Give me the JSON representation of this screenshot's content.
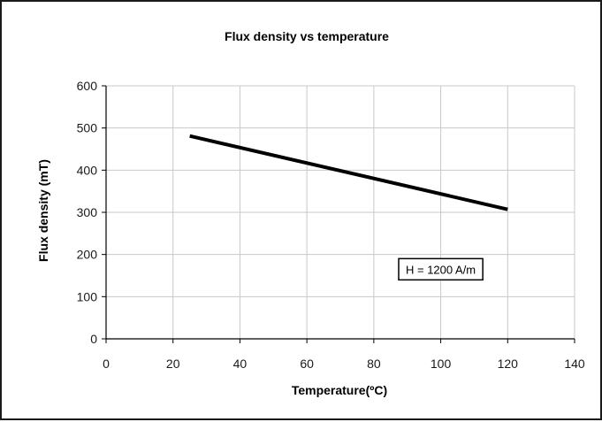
{
  "chart_data": {
    "type": "line",
    "title": "Flux density vs temperature",
    "xlabel": "Temperature(ºC)",
    "ylabel": "Flux density (mT)",
    "xlim": [
      0,
      140
    ],
    "ylim": [
      0,
      600
    ],
    "xticks": [
      0,
      20,
      40,
      60,
      80,
      100,
      120,
      140
    ],
    "yticks": [
      0,
      100,
      200,
      300,
      400,
      500,
      600
    ],
    "grid": true,
    "series": [
      {
        "x": [
          25,
          120
        ],
        "y": [
          481,
          307
        ],
        "color": "#000000"
      }
    ],
    "annotations": [
      {
        "text": "H = 1200 A/m",
        "x": 100,
        "y": 165
      }
    ]
  },
  "colors": {
    "grid": "#c8c8c8",
    "axis": "#000000",
    "line": "#000000"
  }
}
